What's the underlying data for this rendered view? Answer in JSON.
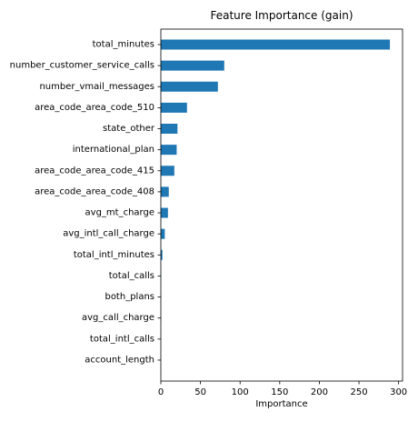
{
  "chart_data": {
    "type": "bar",
    "orientation": "horizontal",
    "title": "Feature Importance (gain)",
    "xlabel": "Importance",
    "ylabel": "",
    "xlim": [
      0,
      305
    ],
    "xticks": [
      0,
      50,
      100,
      150,
      200,
      250,
      300
    ],
    "bar_color": "#1f77b4",
    "grid": false,
    "categories": [
      "total_minutes",
      "number_customer_service_calls",
      "number_vmail_messages",
      "area_code_area_code_510",
      "state_other",
      "international_plan",
      "area_code_area_code_415",
      "area_code_area_code_408",
      "avg_mt_charge",
      "avg_intl_call_charge",
      "total_intl_minutes",
      "total_calls",
      "both_plans",
      "avg_call_charge",
      "total_intl_calls",
      "account_length"
    ],
    "values": [
      289,
      80,
      72,
      33,
      21,
      20,
      17,
      10,
      9,
      5,
      2,
      0.3,
      0.2,
      0.2,
      0.1,
      0.1
    ]
  }
}
